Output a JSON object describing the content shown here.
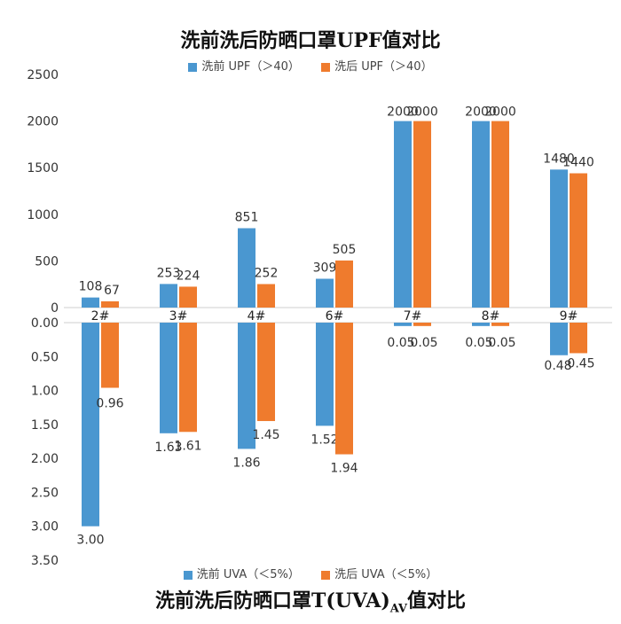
{
  "chart_data": [
    {
      "type": "bar",
      "title": "洗前洗后防晒口罩UPF值对比",
      "categories": [
        "2#",
        "3#",
        "4#",
        "6#",
        "7#",
        "8#",
        "9#"
      ],
      "series": [
        {
          "name": "洗前 UPF（＞40）",
          "values": [
            108,
            253,
            851,
            309,
            2000,
            2000,
            1480
          ],
          "labels": [
            "108",
            "253",
            "851",
            "309",
            "2000",
            "2000",
            "1480"
          ]
        },
        {
          "name": "洗后 UPF（＞40）",
          "values": [
            67,
            224,
            252,
            505,
            2000,
            2000,
            1440
          ],
          "labels": [
            "67",
            "224",
            "252",
            "505",
            "2000",
            "2000",
            "1440"
          ]
        }
      ],
      "ylim": [
        0,
        2500
      ],
      "yticks": [
        "0",
        "500",
        "1000",
        "1500",
        "2000",
        "2500"
      ],
      "colors": [
        "#4a97d0",
        "#ef7b2d"
      ],
      "legend": "top"
    },
    {
      "type": "bar",
      "title": "洗前洗后防晒口罩T(UVA)AV值对比",
      "title_main": "洗前洗后防晒口罩T(UVA)",
      "title_sub": "AV",
      "title_end": "值对比",
      "categories": [
        "2#",
        "3#",
        "4#",
        "6#",
        "7#",
        "8#",
        "9#"
      ],
      "series": [
        {
          "name": "洗前 UVA（＜5%）",
          "values": [
            3.0,
            1.63,
            1.86,
            1.52,
            0.05,
            0.05,
            0.48
          ],
          "labels": [
            "3.00",
            "1.63",
            "1.86",
            "1.52",
            "0.05",
            "0.05",
            "0.48"
          ]
        },
        {
          "name": "洗后 UVA（＜5%）",
          "values": [
            0.96,
            1.61,
            1.45,
            1.94,
            0.05,
            0.05,
            0.45
          ],
          "labels": [
            "0.96",
            "1.61",
            "1.45",
            "1.94",
            "0.05",
            "0.05",
            "0.45"
          ]
        }
      ],
      "ylim": [
        0,
        3.5
      ],
      "yticks": [
        "0.00",
        "0.50",
        "1.00",
        "1.50",
        "2.00",
        "2.50",
        "3.00",
        "3.50"
      ],
      "axis_inverted": true,
      "colors": [
        "#4a97d0",
        "#ef7b2d"
      ],
      "legend": "bottom"
    }
  ]
}
